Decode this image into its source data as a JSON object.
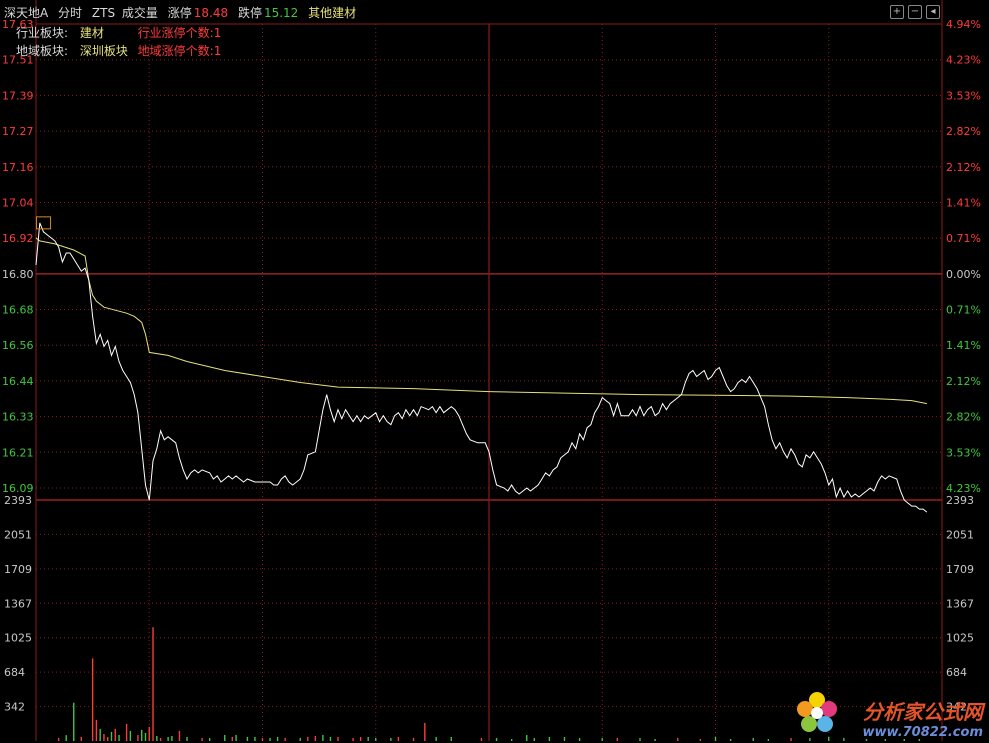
{
  "header": {
    "stock_name": "深天地A",
    "mode": "分时",
    "indicator": "ZTS",
    "volume_label": "成交量",
    "limit_up_label": "涨停",
    "limit_up_value": "18.48",
    "limit_down_label": "跌停",
    "limit_down_value": "15.12",
    "sector": "其他建材"
  },
  "info": {
    "industry_label": "行业板块:",
    "industry_value": "建材",
    "industry_limit": "行业涨停个数:1",
    "region_label": "地域板块:",
    "region_value": "深圳板块",
    "region_limit": "地域涨停个数:1"
  },
  "watermark": {
    "title": "分析家公式网",
    "url": "www.70822.com"
  },
  "colors": {
    "up": "#ff3b3b",
    "down": "#3fc83f",
    "flat": "#c8c8c8",
    "price_line": "#ffffff",
    "avg_line": "#e6e07a",
    "grid": "#8b1a1a"
  },
  "chart_data": {
    "type": "line",
    "price_ticks": [
      "17.63",
      "17.51",
      "17.39",
      "17.27",
      "17.16",
      "17.04",
      "16.92",
      "16.80",
      "16.68",
      "16.56",
      "16.44",
      "16.33",
      "16.21",
      "16.09"
    ],
    "percent_ticks": [
      "4.94%",
      "4.23%",
      "3.53%",
      "2.82%",
      "2.12%",
      "1.41%",
      "0.71%",
      "0.00%",
      "0.71%",
      "1.41%",
      "2.12%",
      "2.82%",
      "3.53%",
      "4.23%"
    ],
    "volume_ticks": [
      "2393",
      "2051",
      "1709",
      "1367",
      "1025",
      "684",
      "342"
    ],
    "ylim": [
      16.0,
      17.63
    ],
    "volume_max": 2393,
    "prev_close": 16.8,
    "n_points": 241,
    "price_series": [
      [
        0,
        16.83
      ],
      [
        1,
        16.97
      ],
      [
        2,
        16.94
      ],
      [
        3,
        16.93
      ],
      [
        5,
        16.91
      ],
      [
        6,
        16.89
      ],
      [
        7,
        16.84
      ],
      [
        8,
        16.87
      ],
      [
        9,
        16.87
      ],
      [
        10,
        16.85
      ],
      [
        11,
        16.83
      ],
      [
        12,
        16.81
      ],
      [
        13,
        16.82
      ],
      [
        14,
        16.78
      ],
      [
        15,
        16.66
      ],
      [
        16,
        16.57
      ],
      [
        17,
        16.6
      ],
      [
        18,
        16.56
      ],
      [
        19,
        16.58
      ],
      [
        20,
        16.53
      ],
      [
        21,
        16.56
      ],
      [
        22,
        16.51
      ],
      [
        23,
        16.48
      ],
      [
        24,
        16.46
      ],
      [
        25,
        16.44
      ],
      [
        26,
        16.4
      ],
      [
        27,
        16.34
      ],
      [
        28,
        16.22
      ],
      [
        29,
        16.1
      ],
      [
        30,
        16.05
      ],
      [
        31,
        16.18
      ],
      [
        32,
        16.22
      ],
      [
        33,
        16.28
      ],
      [
        34,
        16.25
      ],
      [
        35,
        16.26
      ],
      [
        36,
        16.25
      ],
      [
        37,
        16.24
      ],
      [
        38,
        16.19
      ],
      [
        39,
        16.15
      ],
      [
        40,
        16.12
      ],
      [
        41,
        16.14
      ],
      [
        42,
        16.15
      ],
      [
        43,
        16.14
      ],
      [
        44,
        16.15
      ],
      [
        46,
        16.14
      ],
      [
        47,
        16.12
      ],
      [
        48,
        16.13
      ],
      [
        49,
        16.11
      ],
      [
        50,
        16.12
      ],
      [
        51,
        16.13
      ],
      [
        52,
        16.12
      ],
      [
        53,
        16.13
      ],
      [
        54,
        16.12
      ],
      [
        55,
        16.11
      ],
      [
        56,
        16.12
      ],
      [
        58,
        16.11
      ],
      [
        62,
        16.11
      ],
      [
        63,
        16.1
      ],
      [
        64,
        16.1
      ],
      [
        65,
        16.12
      ],
      [
        66,
        16.13
      ],
      [
        67,
        16.11
      ],
      [
        68,
        16.1
      ],
      [
        69,
        16.11
      ],
      [
        70,
        16.12
      ],
      [
        71,
        16.15
      ],
      [
        72,
        16.2
      ],
      [
        74,
        16.21
      ],
      [
        75,
        16.28
      ],
      [
        76,
        16.35
      ],
      [
        77,
        16.4
      ],
      [
        78,
        16.35
      ],
      [
        79,
        16.31
      ],
      [
        80,
        16.35
      ],
      [
        81,
        16.32
      ],
      [
        82,
        16.35
      ],
      [
        84,
        16.31
      ],
      [
        85,
        16.33
      ],
      [
        86,
        16.31
      ],
      [
        87,
        16.33
      ],
      [
        88,
        16.32
      ],
      [
        90,
        16.34
      ],
      [
        91,
        16.31
      ],
      [
        92,
        16.33
      ],
      [
        93,
        16.31
      ],
      [
        94,
        16.3
      ],
      [
        95,
        16.33
      ],
      [
        96,
        16.34
      ],
      [
        97,
        16.32
      ],
      [
        98,
        16.35
      ],
      [
        99,
        16.33
      ],
      [
        100,
        16.35
      ],
      [
        101,
        16.33
      ],
      [
        102,
        16.36
      ],
      [
        104,
        16.35
      ],
      [
        105,
        16.36
      ],
      [
        106,
        16.34
      ],
      [
        107,
        16.36
      ],
      [
        108,
        16.34
      ],
      [
        110,
        16.36
      ],
      [
        111,
        16.35
      ],
      [
        112,
        16.33
      ],
      [
        113,
        16.3
      ],
      [
        114,
        16.27
      ],
      [
        115,
        16.25
      ],
      [
        117,
        16.24
      ],
      [
        119,
        16.24
      ],
      [
        120,
        16.21
      ],
      [
        121,
        16.15
      ],
      [
        122,
        16.1
      ],
      [
        124,
        16.09
      ],
      [
        125,
        16.08
      ],
      [
        126,
        16.1
      ],
      [
        127,
        16.08
      ],
      [
        128,
        16.07
      ],
      [
        129,
        16.08
      ],
      [
        130,
        16.09
      ],
      [
        131,
        16.08
      ],
      [
        132,
        16.09
      ],
      [
        133,
        16.1
      ],
      [
        134,
        16.12
      ],
      [
        135,
        16.14
      ],
      [
        136,
        16.13
      ],
      [
        137,
        16.15
      ],
      [
        138,
        16.16
      ],
      [
        139,
        16.19
      ],
      [
        140,
        16.2
      ],
      [
        141,
        16.21
      ],
      [
        142,
        16.24
      ],
      [
        143,
        16.22
      ],
      [
        144,
        16.27
      ],
      [
        145,
        16.25
      ],
      [
        146,
        16.29
      ],
      [
        147,
        16.3
      ],
      [
        148,
        16.34
      ],
      [
        149,
        16.36
      ],
      [
        150,
        16.39
      ],
      [
        151,
        16.38
      ],
      [
        152,
        16.37
      ],
      [
        153,
        16.33
      ],
      [
        154,
        16.37
      ],
      [
        155,
        16.33
      ],
      [
        157,
        16.33
      ],
      [
        158,
        16.35
      ],
      [
        159,
        16.33
      ],
      [
        160,
        16.36
      ],
      [
        161,
        16.33
      ],
      [
        162,
        16.35
      ],
      [
        163,
        16.36
      ],
      [
        164,
        16.33
      ],
      [
        165,
        16.34
      ],
      [
        166,
        16.37
      ],
      [
        167,
        16.35
      ],
      [
        168,
        16.37
      ],
      [
        169,
        16.38
      ],
      [
        170,
        16.39
      ],
      [
        171,
        16.4
      ],
      [
        172,
        16.44
      ],
      [
        173,
        16.47
      ],
      [
        174,
        16.48
      ],
      [
        175,
        16.46
      ],
      [
        176,
        16.47
      ],
      [
        177,
        16.48
      ],
      [
        178,
        16.45
      ],
      [
        179,
        16.46
      ],
      [
        180,
        16.48
      ],
      [
        181,
        16.49
      ],
      [
        182,
        16.46
      ],
      [
        183,
        16.43
      ],
      [
        184,
        16.41
      ],
      [
        185,
        16.42
      ],
      [
        186,
        16.44
      ],
      [
        187,
        16.45
      ],
      [
        188,
        16.44
      ],
      [
        189,
        16.46
      ],
      [
        190,
        16.44
      ],
      [
        191,
        16.42
      ],
      [
        192,
        16.39
      ],
      [
        193,
        16.36
      ],
      [
        194,
        16.3
      ],
      [
        195,
        16.25
      ],
      [
        196,
        16.22
      ],
      [
        197,
        16.24
      ],
      [
        198,
        16.21
      ],
      [
        199,
        16.19
      ],
      [
        200,
        16.22
      ],
      [
        201,
        16.2
      ],
      [
        202,
        16.17
      ],
      [
        203,
        16.16
      ],
      [
        204,
        16.2
      ],
      [
        205,
        16.19
      ],
      [
        206,
        16.21
      ],
      [
        207,
        16.19
      ],
      [
        208,
        16.17
      ],
      [
        209,
        16.14
      ],
      [
        210,
        16.1
      ],
      [
        211,
        16.12
      ],
      [
        212,
        16.06
      ],
      [
        213,
        16.09
      ],
      [
        214,
        16.06
      ],
      [
        215,
        16.08
      ],
      [
        216,
        16.06
      ],
      [
        217,
        16.07
      ],
      [
        218,
        16.06
      ],
      [
        219,
        16.07
      ],
      [
        220,
        16.08
      ],
      [
        221,
        16.09
      ],
      [
        222,
        16.08
      ],
      [
        223,
        16.11
      ],
      [
        224,
        16.13
      ],
      [
        225,
        16.12
      ],
      [
        226,
        16.13
      ],
      [
        228,
        16.12
      ],
      [
        229,
        16.08
      ],
      [
        230,
        16.05
      ],
      [
        231,
        16.04
      ],
      [
        232,
        16.03
      ],
      [
        233,
        16.03
      ],
      [
        234,
        16.02
      ],
      [
        235,
        16.02
      ],
      [
        236,
        16.01
      ]
    ],
    "avg_series": [
      [
        0,
        16.92
      ],
      [
        1,
        16.91
      ],
      [
        5,
        16.9
      ],
      [
        10,
        16.88
      ],
      [
        13,
        16.86
      ],
      [
        14,
        16.78
      ],
      [
        15,
        16.73
      ],
      [
        16,
        16.71
      ],
      [
        18,
        16.69
      ],
      [
        21,
        16.68
      ],
      [
        24,
        16.67
      ],
      [
        26,
        16.66
      ],
      [
        28,
        16.64
      ],
      [
        29,
        16.6
      ],
      [
        30,
        16.54
      ],
      [
        35,
        16.53
      ],
      [
        40,
        16.51
      ],
      [
        50,
        16.48
      ],
      [
        60,
        16.46
      ],
      [
        70,
        16.44
      ],
      [
        80,
        16.425
      ],
      [
        100,
        16.42
      ],
      [
        120,
        16.41
      ],
      [
        140,
        16.405
      ],
      [
        160,
        16.4
      ],
      [
        180,
        16.398
      ],
      [
        200,
        16.395
      ],
      [
        215,
        16.39
      ],
      [
        225,
        16.385
      ],
      [
        232,
        16.38
      ],
      [
        236,
        16.37
      ]
    ],
    "volume_bars": [
      [
        6,
        30,
        "up"
      ],
      [
        8,
        58,
        "down"
      ],
      [
        10,
        380,
        "down"
      ],
      [
        12,
        40,
        "up"
      ],
      [
        15,
        820,
        "up"
      ],
      [
        16,
        210,
        "up"
      ],
      [
        17,
        120,
        "down"
      ],
      [
        18,
        70,
        "up"
      ],
      [
        19,
        40,
        "up"
      ],
      [
        20,
        90,
        "down"
      ],
      [
        21,
        120,
        "up"
      ],
      [
        22,
        60,
        "down"
      ],
      [
        24,
        170,
        "up"
      ],
      [
        25,
        100,
        "down"
      ],
      [
        27,
        60,
        "up"
      ],
      [
        28,
        110,
        "down"
      ],
      [
        29,
        80,
        "down"
      ],
      [
        30,
        140,
        "up"
      ],
      [
        31,
        1130,
        "up"
      ],
      [
        32,
        50,
        "down"
      ],
      [
        33,
        30,
        "up"
      ],
      [
        35,
        40,
        "down"
      ],
      [
        36,
        50,
        "down"
      ],
      [
        38,
        100,
        "up"
      ],
      [
        40,
        40,
        "down"
      ],
      [
        44,
        30,
        "up"
      ],
      [
        46,
        30,
        "down"
      ],
      [
        50,
        60,
        "down"
      ],
      [
        52,
        40,
        "up"
      ],
      [
        53,
        60,
        "down"
      ],
      [
        56,
        40,
        "down"
      ],
      [
        58,
        40,
        "down"
      ],
      [
        60,
        30,
        "up"
      ],
      [
        62,
        30,
        "down"
      ],
      [
        64,
        40,
        "down"
      ],
      [
        66,
        30,
        "up"
      ],
      [
        70,
        30,
        "down"
      ],
      [
        72,
        40,
        "up"
      ],
      [
        74,
        50,
        "up"
      ],
      [
        76,
        60,
        "down"
      ],
      [
        78,
        40,
        "down"
      ],
      [
        80,
        40,
        "up"
      ],
      [
        84,
        30,
        "up"
      ],
      [
        86,
        40,
        "up"
      ],
      [
        88,
        40,
        "down"
      ],
      [
        90,
        30,
        "down"
      ],
      [
        94,
        30,
        "down"
      ],
      [
        96,
        40,
        "up"
      ],
      [
        100,
        30,
        "up"
      ],
      [
        103,
        180,
        "up"
      ],
      [
        106,
        40,
        "down"
      ],
      [
        110,
        40,
        "down"
      ],
      [
        118,
        30,
        "up"
      ],
      [
        122,
        30,
        "down"
      ],
      [
        126,
        20,
        "down"
      ],
      [
        130,
        60,
        "down"
      ],
      [
        132,
        30,
        "down"
      ],
      [
        136,
        40,
        "down"
      ],
      [
        140,
        40,
        "down"
      ],
      [
        144,
        30,
        "down"
      ],
      [
        150,
        30,
        "down"
      ],
      [
        154,
        30,
        "up"
      ],
      [
        160,
        30,
        "down"
      ],
      [
        164,
        20,
        "down"
      ],
      [
        170,
        30,
        "up"
      ],
      [
        176,
        20,
        "up"
      ],
      [
        180,
        40,
        "down"
      ],
      [
        184,
        20,
        "down"
      ],
      [
        190,
        30,
        "down"
      ],
      [
        194,
        20,
        "down"
      ],
      [
        200,
        30,
        "up"
      ],
      [
        205,
        30,
        "down"
      ],
      [
        210,
        40,
        "down"
      ],
      [
        214,
        30,
        "down"
      ],
      [
        220,
        20,
        "down"
      ],
      [
        225,
        20,
        "down"
      ],
      [
        230,
        20,
        "down"
      ],
      [
        234,
        20,
        "down"
      ]
    ]
  }
}
